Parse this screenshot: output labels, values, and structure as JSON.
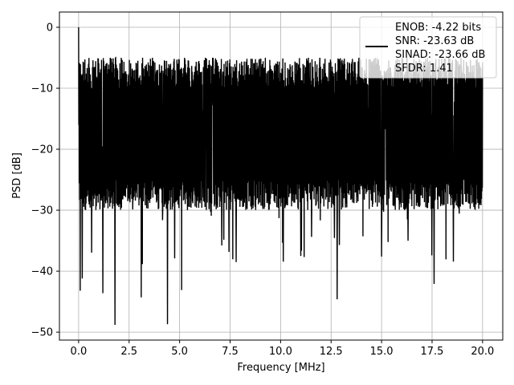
{
  "chart_data": {
    "type": "line",
    "title": "",
    "xlabel": "Frequency [MHz]",
    "ylabel": "PSD [dB]",
    "xlim": [
      -0.95,
      21.0
    ],
    "ylim": [
      -51.3,
      2.5
    ],
    "xticks": [
      0.0,
      2.5,
      5.0,
      7.5,
      10.0,
      12.5,
      15.0,
      17.5,
      20.0
    ],
    "xtick_labels": [
      "0.0",
      "2.5",
      "5.0",
      "7.5",
      "10.0",
      "12.5",
      "15.0",
      "17.5",
      "20.0"
    ],
    "yticks": [
      0,
      -10,
      -20,
      -30,
      -40,
      -50
    ],
    "ytick_labels": [
      "0",
      "−10",
      "−20",
      "−30",
      "−40",
      "−50"
    ],
    "grid": true,
    "legend_position": "top-right",
    "legend_entries": [
      "ENOB: -4.22 bits",
      "SNR: -23.63 dB",
      "SINAD: -23.66 dB",
      "SFDR: 1.41"
    ],
    "series": [
      {
        "color": "#000000",
        "x_range": [
          0.0,
          20.0
        ],
        "noise_band_upper_db": [
          -10,
          -5
        ],
        "noise_band_lower_db": [
          -30,
          -25
        ],
        "mean_level_db": -17,
        "peak": {
          "x": 0.0,
          "y": 0.0
        },
        "deep_nulls": [
          {
            "x": 0.08,
            "y": -43.2
          },
          {
            "x": 0.18,
            "y": -41.2
          },
          {
            "x": 1.2,
            "y": -43.6
          },
          {
            "x": 1.8,
            "y": -48.8
          },
          {
            "x": 3.1,
            "y": -44.3
          },
          {
            "x": 4.4,
            "y": -48.7
          },
          {
            "x": 5.1,
            "y": -43.1
          },
          {
            "x": 12.8,
            "y": -44.6
          },
          {
            "x": 17.6,
            "y": -42.1
          },
          {
            "x": 7.8,
            "y": -38.5
          },
          {
            "x": 11.0,
            "y": -37.5
          },
          {
            "x": 15.0,
            "y": -37.6
          }
        ]
      }
    ]
  }
}
